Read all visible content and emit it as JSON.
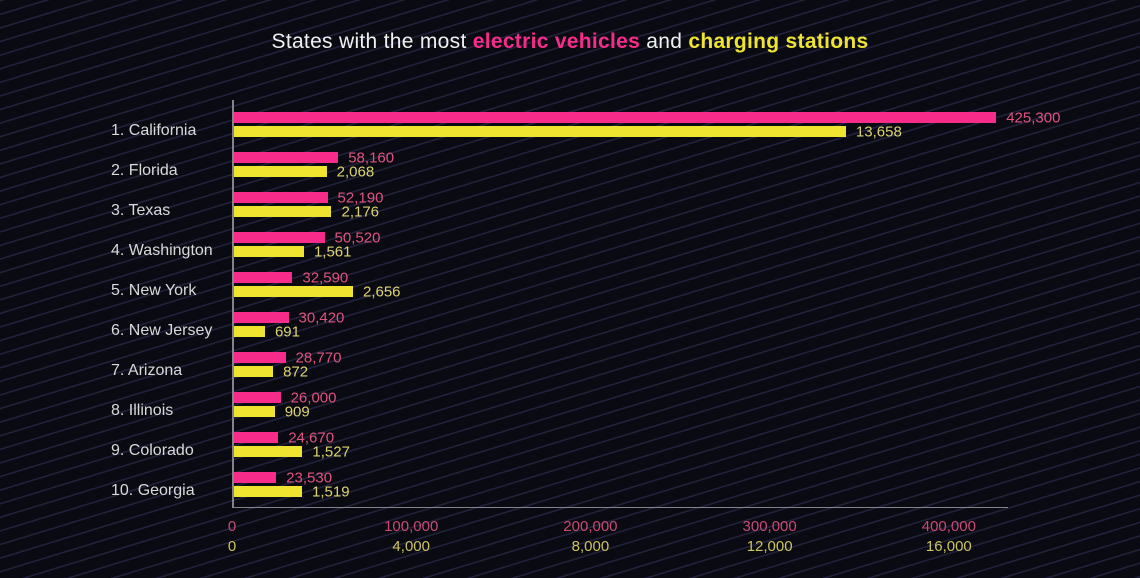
{
  "title": {
    "part1": "States with the most ",
    "highlight_ev": "electric vehicles",
    "part2": " and ",
    "highlight_cs": "charging stations"
  },
  "colors": {
    "background": "#0a0a12",
    "stripe": "#21213a",
    "title_text": "#f0f0f0",
    "state_text": "#d9d9d9",
    "axis_line": "#83838c",
    "ev_bar": "#f72c8a",
    "station_bar": "#efe42f",
    "ev_text": "#e05381",
    "station_text": "#ddd46e",
    "ev_axis_text": "#c94a75",
    "station_axis_text": "#cdc55e"
  },
  "chart_data": {
    "type": "bar",
    "orientation": "horizontal",
    "grid": false,
    "legend_position": "none (series colors indicated by title highlights)",
    "title": "States with the most electric vehicles and charging stations",
    "categories": [
      "1. California",
      "2. Florida",
      "3. Texas",
      "4. Washington",
      "5. New York",
      "6. New Jersey",
      "7. Arizona",
      "8. Illinois",
      "9. Colorado",
      "10. Georgia"
    ],
    "series": [
      {
        "name": "electric vehicles",
        "color": "#f72c8a",
        "values": [
          425300,
          58160,
          52190,
          50520,
          32590,
          30420,
          28770,
          26000,
          24670,
          23530
        ],
        "value_labels": [
          "425,300",
          "58,160",
          "52,190",
          "50,520",
          "32,590",
          "30,420",
          "28,770",
          "26,000",
          "24,670",
          "23,530"
        ],
        "axis": {
          "ticks": [
            0,
            100000,
            200000,
            300000,
            400000
          ],
          "tick_labels": [
            "0",
            "100,000",
            "200,000",
            "300,000",
            "400,000"
          ],
          "max": 433000
        }
      },
      {
        "name": "charging stations",
        "color": "#efe42f",
        "values": [
          13658,
          2068,
          2176,
          1561,
          2656,
          691,
          872,
          909,
          1527,
          1519
        ],
        "value_labels": [
          "13,658",
          "2,068",
          "2,176",
          "1,561",
          "2,656",
          "691",
          "872",
          "909",
          "1,527",
          "1,519"
        ],
        "axis": {
          "ticks": [
            0,
            4000,
            8000,
            12000,
            16000
          ],
          "tick_labels": [
            "0",
            "4,000",
            "8,000",
            "12,000",
            "16,000"
          ],
          "max": 17320
        }
      }
    ]
  }
}
